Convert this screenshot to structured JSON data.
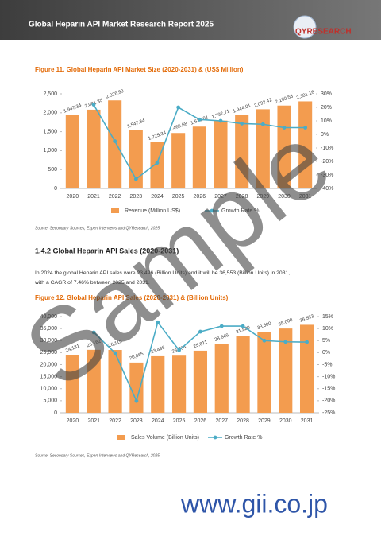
{
  "header": {
    "title": "Global Heparin API Market Research Report 2025",
    "logo": "QYRESEARCH"
  },
  "section": {
    "heading": "1.4.2 Global Heparin API Sales (2020-2031)",
    "paragraph_lines": [
      "In 2024 the global Heparin API sales were 23,496 (Billion Units) and it will be 36,553 (Billion Units) in 2031,",
      "with a CAGR of 7.46% between 2025 and 2031."
    ]
  },
  "watermark": "Sample",
  "footer": {
    "site": "www.gii.co.jp"
  },
  "chart_data": [
    {
      "type": "bar",
      "title": "Figure 11.   Global Heparin API Market Size (2020-2031) & (US$ Million)",
      "source": "Source: Secondary Sources, Expert Interviews and QYResearch, 2025",
      "categories": [
        "2020",
        "2021",
        "2022",
        "2023",
        "2024",
        "2025",
        "2026",
        "2027",
        "2028",
        "2029",
        "2030",
        "2031"
      ],
      "series": [
        {
          "name": "Revenue (Million US$)",
          "type": "bar",
          "color": "#f39c4f",
          "values": [
            1947.34,
            2081.35,
            2326.99,
            1547.34,
            1225.34,
            1465.68,
            1633.81,
            1792.71,
            1944.01,
            2092.42,
            2190.53,
            2301.16
          ],
          "value_labels": [
            "1,947.34",
            "2,081.35",
            "2,326.99",
            "1,547.34",
            "1,225.34",
            "1,465.68",
            "1,633.81",
            "1,792.71",
            "1,944.01",
            "2,092.42",
            "2,190.53",
            "2,301.16"
          ]
        },
        {
          "name": "Growth Rate %",
          "type": "line",
          "axis": "y2",
          "color": "#4bacc6",
          "values": [
            null,
            22,
            -5,
            -33,
            -21,
            20,
            11,
            10,
            8,
            7.5,
            5,
            5
          ]
        }
      ],
      "ylim": [
        0,
        2500
      ],
      "yticks": [
        0,
        500,
        {
          "value": 1000,
          "label": "1,000"
        },
        {
          "value": 1500,
          "label": "1,500"
        },
        {
          "value": 2000,
          "label": "2,000"
        },
        {
          "value": 2500,
          "label": "2,500"
        }
      ],
      "y2lim": [
        -40,
        30
      ],
      "y2ticks": [
        {
          "value": 30,
          "label": "30%"
        },
        {
          "value": 20,
          "label": "20%"
        },
        {
          "value": 10,
          "label": "10%"
        },
        {
          "value": 0,
          "label": "0%"
        },
        {
          "value": -10,
          "label": "-10%"
        },
        {
          "value": -20,
          "label": "-20%"
        },
        {
          "value": -30,
          "label": "-30%"
        },
        {
          "value": -40,
          "label": "-40%"
        }
      ]
    },
    {
      "type": "bar",
      "title": "Figure 12.   Global Heparin API Sales (2020-2031) & (Billion Units)",
      "source": "Source: Secondary Sources, Expert Interviews and QYResearch, 2025",
      "categories": [
        "2020",
        "2021",
        "2022",
        "2023",
        "2024",
        "2025",
        "2026",
        "2027",
        "2028",
        "2029",
        "2030",
        "2031"
      ],
      "series": [
        {
          "name": "Sales Volume (Billion Units)",
          "type": "bar",
          "color": "#f39c4f",
          "values": [
            24131,
            26162,
            26115,
            20865,
            23496,
            23734,
            25811,
            28646,
            31820,
            33500,
            35000,
            36553
          ],
          "value_labels": [
            "24,131",
            "26,162",
            "26,115",
            "20,865",
            "23,496",
            "23,734",
            "25,811",
            "28,646",
            "31,820",
            "33,500",
            "35,000",
            "36,553"
          ]
        },
        {
          "name": "Growth Rate %",
          "type": "line",
          "axis": "y2",
          "color": "#4bacc6",
          "values": [
            null,
            8.4,
            -0.2,
            -20.1,
            12.6,
            1,
            8.7,
            11,
            11,
            5,
            4.5,
            4.4
          ]
        }
      ],
      "ylim": [
        0,
        40000
      ],
      "yticks": [
        0,
        {
          "value": 5000,
          "label": "5,000"
        },
        {
          "value": 10000,
          "label": "10,000"
        },
        {
          "value": 15000,
          "label": "15,000"
        },
        {
          "value": 20000,
          "label": "20,000"
        },
        {
          "value": 25000,
          "label": "25,000"
        },
        {
          "value": 30000,
          "label": "30,000"
        },
        {
          "value": 35000,
          "label": "35,000"
        },
        {
          "value": 40000,
          "label": "40,000"
        }
      ],
      "y2lim": [
        -25,
        15
      ],
      "y2ticks": [
        {
          "value": 15,
          "label": "15%"
        },
        {
          "value": 10,
          "label": "10%"
        },
        {
          "value": 5,
          "label": "5%"
        },
        {
          "value": 0,
          "label": "0%"
        },
        {
          "value": -5,
          "label": "-5%"
        },
        {
          "value": -10,
          "label": "-10%"
        },
        {
          "value": -15,
          "label": "-15%"
        },
        {
          "value": -20,
          "label": "-20%"
        },
        {
          "value": -25,
          "label": "-25%"
        }
      ]
    }
  ]
}
